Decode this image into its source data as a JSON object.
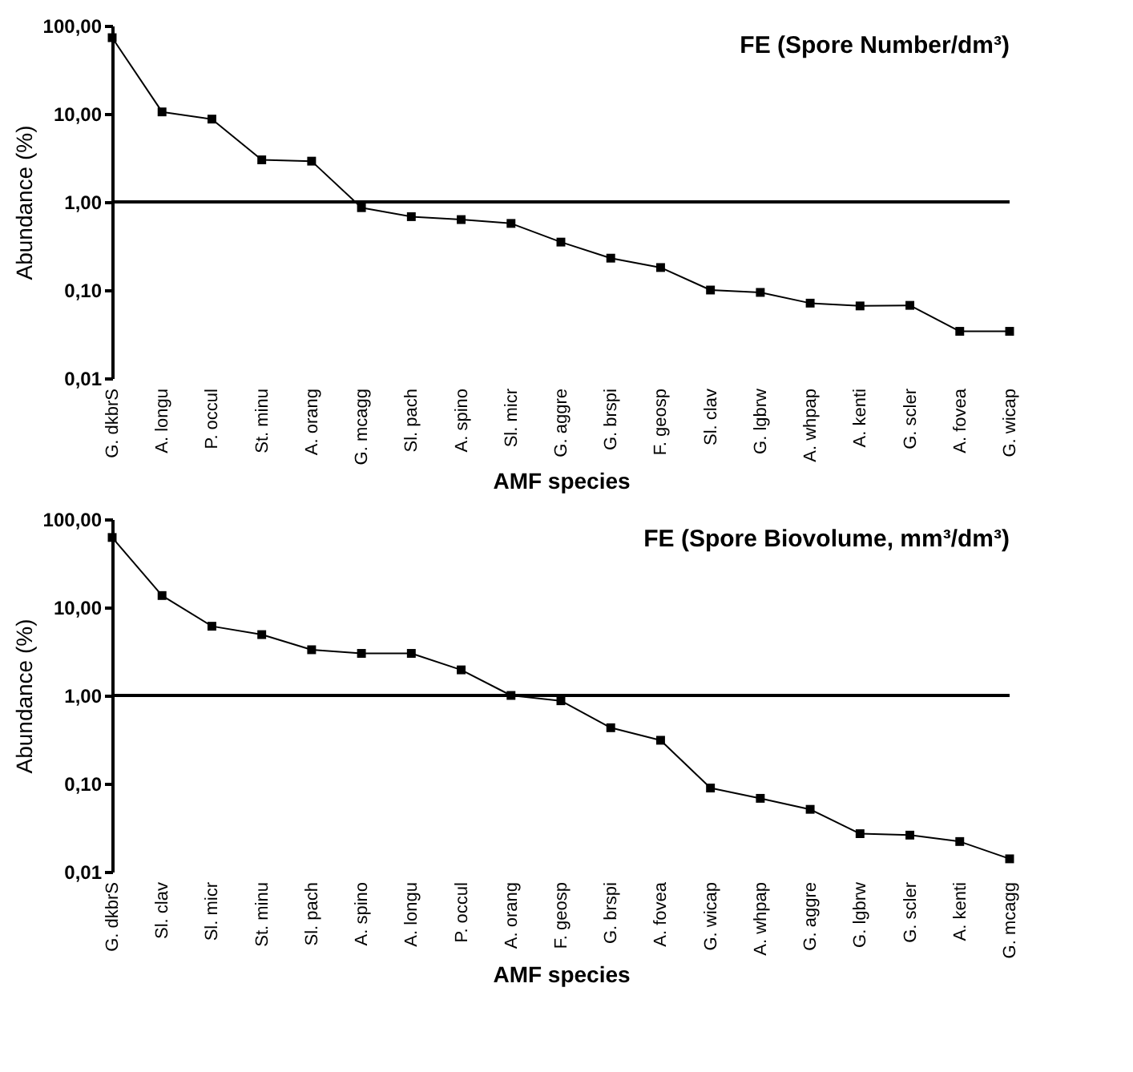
{
  "chart_data": [
    {
      "type": "line",
      "title": "FE (Spore Number/dm³)",
      "xlabel": "AMF species",
      "ylabel": "Abundance (%)",
      "categories": [
        "G. dkbrS",
        "A. longu",
        "P. occul",
        "St. minu",
        "A. orang",
        "G. mcagg",
        "Sl. pach",
        "A. spino",
        "Sl. micr",
        "G. aggre",
        "G. brspi",
        "F. geosp",
        "Sl. clav",
        "G. lgbrw",
        "A. whpap",
        "A. kenti",
        "G. scler",
        "A. fovea",
        "G. wicap"
      ],
      "series": [
        {
          "color": "#000000",
          "values": [
            73,
            10.5,
            8.7,
            3.0,
            2.9,
            0.86,
            0.68,
            0.63,
            0.57,
            0.35,
            0.23,
            0.18,
            0.1,
            0.094,
            0.071,
            0.066,
            0.067,
            0.034,
            0.034
          ]
        }
      ],
      "log": "y",
      "ylim": [
        0.01,
        100
      ],
      "yticks": [
        {
          "value": 0.01,
          "label": "0,01"
        },
        {
          "value": 0.1,
          "label": "0,10"
        },
        {
          "value": 1,
          "label": "1,00"
        },
        {
          "value": 10,
          "label": "10,00"
        },
        {
          "value": 100,
          "label": "100,00"
        }
      ],
      "ref_lines": [
        {
          "axis": "y",
          "value": 1,
          "color": "#000000"
        }
      ],
      "marker": "square",
      "line_style": "solid"
    },
    {
      "type": "line",
      "title": "FE (Spore Biovolume, mm³/dm³)",
      "xlabel": "AMF species",
      "ylabel": "Abundance (%)",
      "categories": [
        "G. dkbrS",
        "Sl. clav",
        "Sl. micr",
        "St. minu",
        "Sl. pach",
        "A. spino",
        "A. longu",
        "P. occul",
        "A. orang",
        "F. geosp",
        "G. brspi",
        "A. fovea",
        "G. wicap",
        "A. whpap",
        "G. aggre",
        "G. lgbrw",
        "G. scler",
        "A. kenti",
        "G. mcagg"
      ],
      "series": [
        {
          "color": "#000000",
          "values": [
            62,
            13.6,
            6.1,
            4.9,
            3.3,
            3.0,
            3.0,
            1.95,
            1.0,
            0.87,
            0.43,
            0.31,
            0.089,
            0.068,
            0.051,
            0.027,
            0.026,
            0.022,
            0.014
          ]
        }
      ],
      "log": "y",
      "ylim": [
        0.01,
        100
      ],
      "yticks": [
        {
          "value": 0.01,
          "label": "0,01"
        },
        {
          "value": 0.1,
          "label": "0,10"
        },
        {
          "value": 1,
          "label": "1,00"
        },
        {
          "value": 10,
          "label": "10,00"
        },
        {
          "value": 100,
          "label": "100,00"
        }
      ],
      "ref_lines": [
        {
          "axis": "y",
          "value": 1,
          "color": "#000000"
        }
      ],
      "marker": "square",
      "line_style": "solid"
    }
  ]
}
